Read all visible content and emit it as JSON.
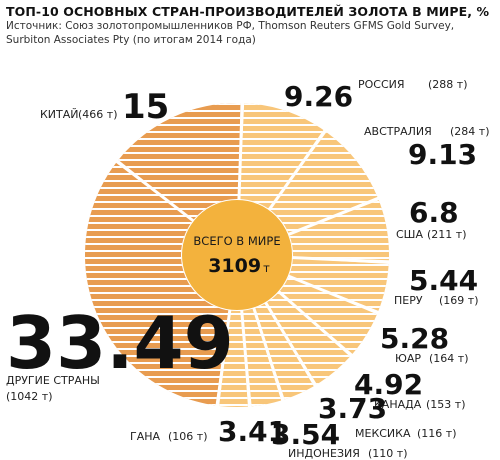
{
  "header": {
    "title": "ТОП-10 ОСНОВНЫХ СТРАН-ПРОИЗВОДИТЕЛЕЙ ЗОЛОТА В МИРЕ, %",
    "source_line1": "Источник: Союз золотопромышленников РФ, Thomson Reuters GFMS Gold Survey,",
    "source_line2": "Surbiton Associates Pty (по итогам 2014 года)"
  },
  "center": {
    "label": "ВСЕГО В МИРЕ",
    "total": "3109",
    "unit": "т"
  },
  "colors": {
    "ring_dark": "#e89c50",
    "ring_light": "#f8c67a",
    "center": "#f3b23d",
    "stripe": "#ffffff"
  },
  "chart_data": {
    "type": "pie",
    "title": "ТОП-10 ОСНОВНЫХ СТРАН-ПРОИЗВОДИТЕЛЕЙ ЗОЛОТА В МИРЕ, %",
    "unit": "%",
    "total_tonnes": 3109,
    "slices": [
      {
        "name": "РОССИЯ",
        "value": 9.26,
        "value_label": "9.26",
        "tonnes": "(288 т)"
      },
      {
        "name": "АВСТРАЛИЯ",
        "value": 9.13,
        "value_label": "9.13",
        "tonnes": "(284 т)"
      },
      {
        "name": "США",
        "value": 6.8,
        "value_label": "6.8",
        "tonnes": "(211 т)"
      },
      {
        "name": "ПЕРУ",
        "value": 5.44,
        "value_label": "5.44",
        "tonnes": "(169 т)"
      },
      {
        "name": "ЮАР",
        "value": 5.28,
        "value_label": "5.28",
        "tonnes": "(164 т)"
      },
      {
        "name": "КАНАДА",
        "value": 4.92,
        "value_label": "4.92",
        "tonnes": "(153 т)"
      },
      {
        "name": "МЕКСИКА",
        "value": 3.73,
        "value_label": "3.73",
        "tonnes": "(116 т)"
      },
      {
        "name": "ИНДОНЕЗИЯ",
        "value": 3.54,
        "value_label": "3.54",
        "tonnes": "(110 т)"
      },
      {
        "name": "ГАНА",
        "value": 3.41,
        "value_label": "3.41",
        "tonnes": "(106 т)"
      },
      {
        "name": "ДРУГИЕ СТРАНЫ",
        "value": 33.49,
        "value_label": "33.49",
        "tonnes": "(1042 т)"
      },
      {
        "name": "КИТАЙ",
        "value": 15,
        "value_label": "15",
        "tonnes": "(466 т)"
      }
    ]
  }
}
